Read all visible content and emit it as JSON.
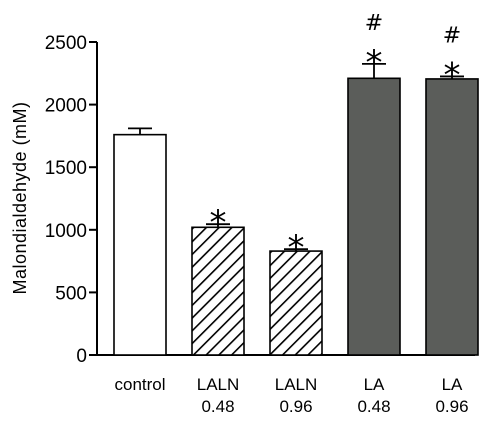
{
  "chart_data": {
    "type": "bar",
    "ylabel": "Malondialdehyde (mM)",
    "xlabel": "",
    "ylim": [
      0,
      2500
    ],
    "yticks": [
      "0",
      "500",
      "1000",
      "1500",
      "2000",
      "2500"
    ],
    "grid": false,
    "categories": [
      {
        "line1": "control",
        "line2": ""
      },
      {
        "line1": "LALN",
        "line2": "0.48"
      },
      {
        "line1": "LALN",
        "line2": "0.96"
      },
      {
        "line1": "LA",
        "line2": "0.48"
      },
      {
        "line1": "LA",
        "line2": "0.96"
      }
    ],
    "values": [
      1760,
      1020,
      830,
      2210,
      2205
    ],
    "errors": [
      50,
      25,
      15,
      115,
      20
    ],
    "fills": [
      "white",
      "hatched",
      "hatched",
      "solid",
      "solid"
    ],
    "colors": {
      "solid": "#5b5d5a",
      "white": "#ffffff",
      "stroke": "#000000"
    },
    "annotations": [
      {
        "category_index": 1,
        "markers": [
          "*"
        ]
      },
      {
        "category_index": 2,
        "markers": [
          "*"
        ]
      },
      {
        "category_index": 3,
        "markers": [
          "#",
          "*"
        ]
      },
      {
        "category_index": 4,
        "markers": [
          "#",
          "*"
        ]
      }
    ]
  }
}
